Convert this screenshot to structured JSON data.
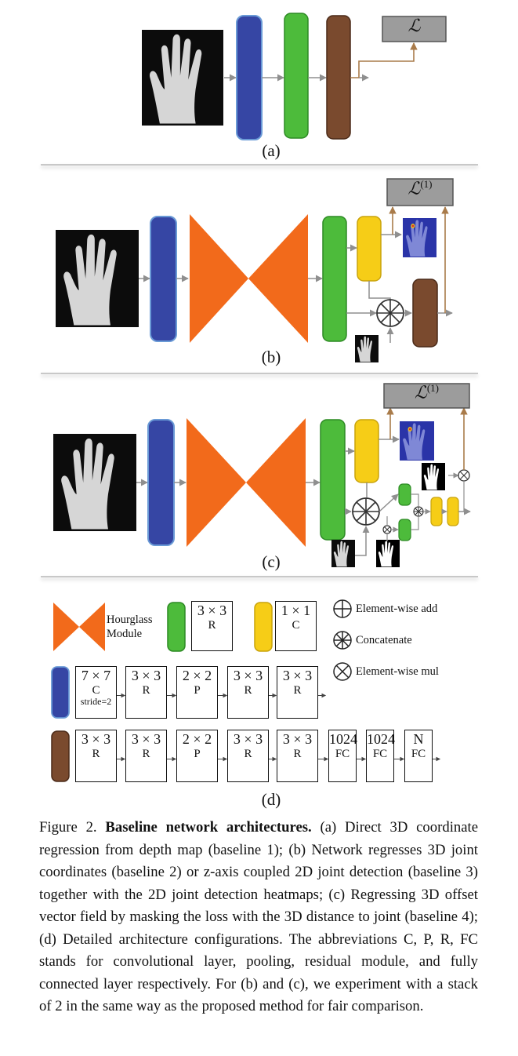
{
  "panels": {
    "a": {
      "label": "(a)",
      "loss": "ℒ"
    },
    "b": {
      "label": "(b)",
      "loss": "ℒ",
      "loss_sup": "(1)"
    },
    "c": {
      "label": "(c)",
      "loss": "ℒ",
      "loss_sup": "(1)"
    },
    "d": {
      "label": "(d)"
    }
  },
  "legend": {
    "hourglass": "Hourglass\nModule",
    "green_block": {
      "size": "3 × 3",
      "type": "R"
    },
    "yellow_block": {
      "size": "1 × 1",
      "type": "C"
    },
    "ops": {
      "add": "Element-wise add",
      "concat": "Concatenate",
      "mul": "Element-wise mul"
    }
  },
  "blue_row": [
    {
      "size": "7 × 7",
      "type": "C",
      "note": "stride=2"
    },
    {
      "size": "3 × 3",
      "type": "R"
    },
    {
      "size": "2 × 2",
      "type": "P"
    },
    {
      "size": "3 × 3",
      "type": "R"
    },
    {
      "size": "3 × 3",
      "type": "R"
    }
  ],
  "brown_row": [
    {
      "size": "3 × 3",
      "type": "R"
    },
    {
      "size": "3 × 3",
      "type": "R"
    },
    {
      "size": "2 × 2",
      "type": "P"
    },
    {
      "size": "3 × 3",
      "type": "R"
    },
    {
      "size": "3 × 3",
      "type": "R"
    },
    {
      "size": "1024",
      "type": "FC"
    },
    {
      "size": "1024",
      "type": "FC"
    },
    {
      "size": "N",
      "type": "FC"
    }
  ],
  "colors": {
    "blue": "#3646a4",
    "green": "#4dbb3b",
    "brown": "#7a4a2e",
    "orange": "#f26a1b",
    "yellow": "#f6cd17",
    "loss_box": "#9c9c9c",
    "arrow_brown": "#a97b4a",
    "arrow_gray": "#8f8f8f"
  },
  "caption": {
    "prefix": "Figure 2.",
    "title": "Baseline network architectures.",
    "body": "(a) Direct 3D coordinate regression from depth map (baseline 1); (b) Network regresses 3D joint coordinates (baseline 2) or z-axis coupled 2D joint detection (baseline 3) together with the 2D joint detection heatmaps; (c) Regressing 3D offset vector field by masking the loss with the 3D distance to joint (baseline 4); (d) Detailed architecture configurations. The abbreviations C, P, R, FC stands for convolutional layer, pooling, residual module, and fully connected layer respectively. For (b) and (c), we experiment with a stack of 2 in the same way as the proposed method for fair comparison."
  }
}
